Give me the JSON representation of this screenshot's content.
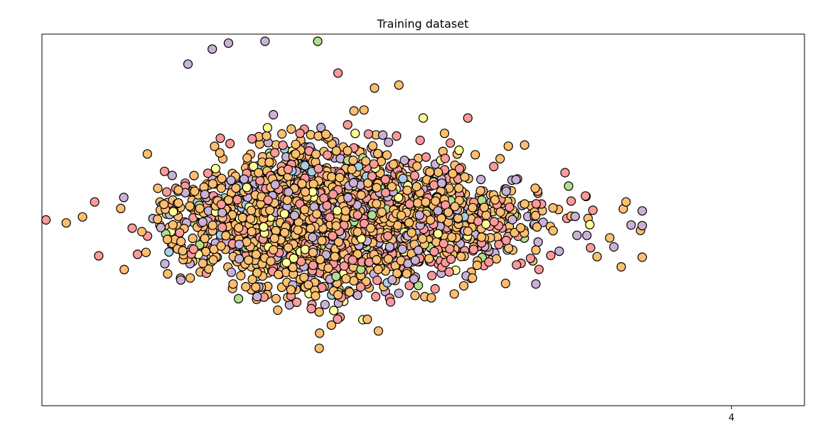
{
  "chart_data": {
    "type": "scatter",
    "title": "Training dataset",
    "xlabel": "",
    "ylabel": "",
    "xlim": [
      -4.5,
      4.9
    ],
    "ylim": [
      -3.1,
      3.1
    ],
    "x_ticks": [
      4
    ],
    "y_ticks": [],
    "grid": false,
    "legend": "none",
    "colors": [
      "#fdbf6f",
      "#fb9a99",
      "#cab2d6",
      "#ffff99",
      "#b2df8a",
      "#a6cee3"
    ],
    "color_weights": [
      0.52,
      0.22,
      0.16,
      0.05,
      0.03,
      0.02
    ],
    "point_count": 2600,
    "distribution": {
      "x_mean": -1.1,
      "x_std": 1.05,
      "x_skew": 0.6,
      "y_mean": 0.0,
      "y_std": 0.5,
      "x_min": -4.45,
      "x_max": 2.9
    },
    "visible_points": [
      [
        -4.45,
        0.0
      ],
      [
        -4.2,
        -0.05
      ],
      [
        -4.0,
        0.05
      ],
      [
        -3.8,
        -0.6
      ],
      [
        -3.85,
        0.3
      ],
      [
        -3.2,
        1.1
      ],
      [
        -2.95,
        -0.9
      ],
      [
        -2.7,
        2.6
      ],
      [
        -2.4,
        2.85
      ],
      [
        -2.2,
        2.95
      ],
      [
        -1.75,
        2.98
      ],
      [
        -1.1,
        2.98
      ],
      [
        -0.85,
        2.45
      ],
      [
        -0.4,
        2.2
      ],
      [
        -0.1,
        2.25
      ],
      [
        0.2,
        1.7
      ],
      [
        0.75,
        1.7
      ],
      [
        0.3,
        -1.3
      ],
      [
        -0.85,
        -1.25
      ],
      [
        0.7,
        -1.1
      ],
      [
        1.35,
        -0.75
      ],
      [
        1.8,
        0.2
      ],
      [
        2.2,
        0.4
      ],
      [
        2.55,
        -0.45
      ],
      [
        2.7,
        0.3
      ],
      [
        2.9,
        0.15
      ],
      [
        1.45,
        1.25
      ],
      [
        2.5,
        -0.3
      ]
    ]
  }
}
